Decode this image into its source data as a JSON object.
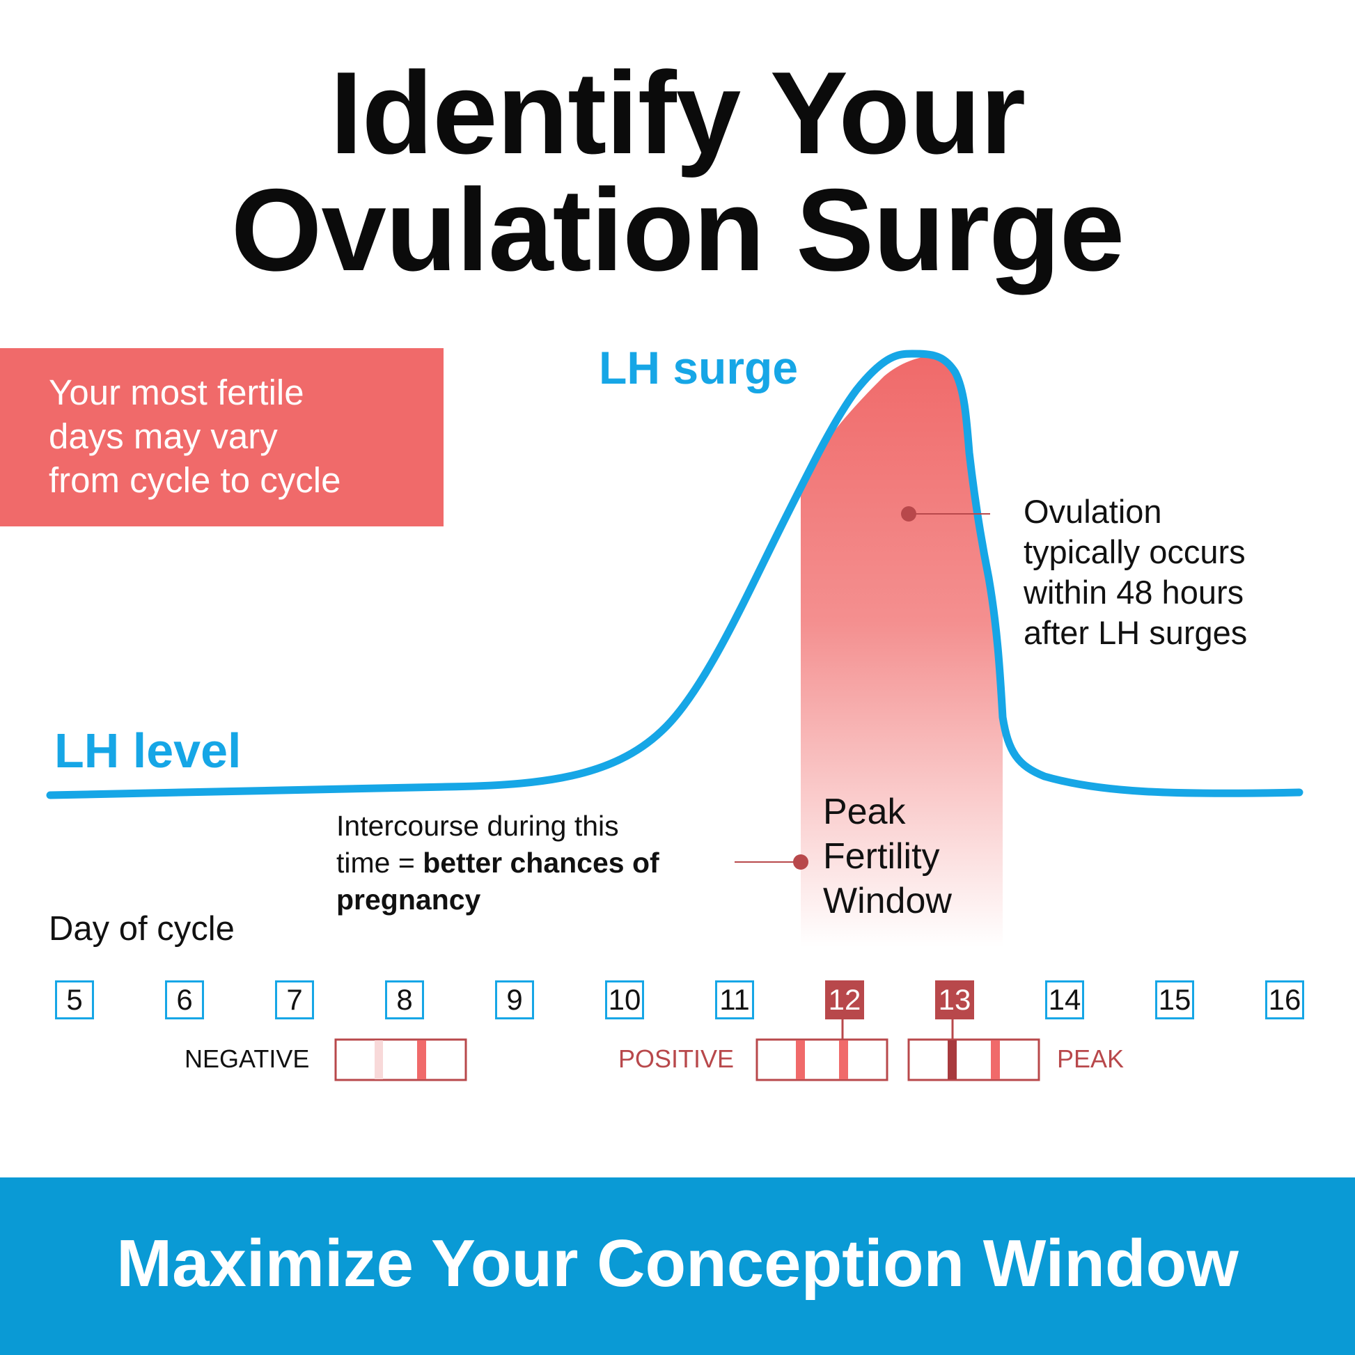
{
  "title": {
    "line1": "Identify Your",
    "line2": "Ovulation Surge"
  },
  "callout": {
    "lines": [
      "Your most fertile",
      "days may vary",
      "from cycle to cycle"
    ]
  },
  "chart": {
    "surge_label": "LH surge",
    "level_label": "LH level",
    "ovulation_note": [
      "Ovulation",
      "typically occurs",
      "within 48 hours",
      "after LH surges"
    ],
    "peak_window": [
      "Peak",
      "Fertility",
      "Window"
    ],
    "intercourse_note": {
      "line1": "Intercourse during this",
      "line2_plain": "time = ",
      "line2_bold": "better chances of",
      "line3_bold": "pregnancy"
    },
    "x_axis_label": "Day of cycle",
    "colors": {
      "curve": "#16a6e6",
      "window": "#f06a6a",
      "highlight": "#b8484b"
    }
  },
  "chart_data": {
    "type": "line",
    "x": [
      5,
      6,
      7,
      8,
      9,
      10,
      11,
      12,
      13,
      14,
      15,
      16
    ],
    "highlighted_days": [
      12,
      13
    ],
    "series": [
      {
        "name": "LH level",
        "description_values": [
          0.02,
          0.03,
          0.03,
          0.04,
          0.04,
          0.1,
          0.45,
          0.85,
          0.98,
          0.05,
          0.02,
          0.02
        ]
      }
    ],
    "ylabel": "",
    "xlabel": "Day of cycle"
  },
  "days": [
    "5",
    "6",
    "7",
    "8",
    "9",
    "10",
    "11",
    "12",
    "13",
    "14",
    "15",
    "16"
  ],
  "tests": {
    "negative_label": "NEGATIVE",
    "positive_label": "POSITIVE",
    "peak_label": "PEAK"
  },
  "footer": {
    "text": "Maximize Your Conception Window"
  }
}
